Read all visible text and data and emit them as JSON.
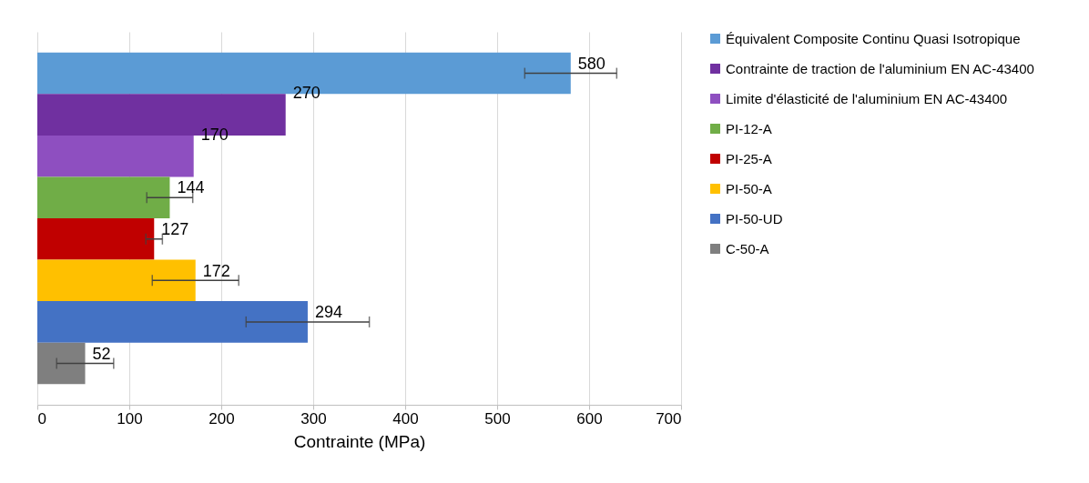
{
  "chart_data": {
    "type": "bar",
    "orientation": "horizontal",
    "xlabel": "Contrainte (MPa)",
    "categories": [
      null,
      null,
      null,
      null,
      null,
      null,
      null,
      null
    ],
    "series": [
      {
        "name": "Équivalent Composite Continu Quasi Isotropique",
        "color": "#5b9bd5",
        "values": [
          580,
          null,
          null,
          null,
          null,
          null,
          null,
          null
        ],
        "errors": [
          50,
          null,
          null,
          null,
          null,
          null,
          null,
          null
        ]
      },
      {
        "name": "Contrainte de traction de l'aluminium EN AC-43400",
        "color": "#7030a0",
        "values": [
          null,
          270,
          null,
          null,
          null,
          null,
          null,
          null
        ]
      },
      {
        "name": "Limite d'élasticité de l'aluminium EN AC-43400",
        "color": "#8e4fc0",
        "values": [
          null,
          null,
          170,
          null,
          null,
          null,
          null,
          null
        ]
      },
      {
        "name": "PI-12-A",
        "color": "#70ad47",
        "values": [
          null,
          null,
          null,
          144,
          null,
          null,
          null,
          null
        ],
        "errors": [
          null,
          null,
          null,
          25,
          null,
          null,
          null,
          null
        ]
      },
      {
        "name": "PI-25-A",
        "color": "#c00000",
        "values": [
          null,
          null,
          null,
          null,
          127,
          null,
          null,
          null
        ],
        "errors": [
          null,
          null,
          null,
          null,
          9,
          null,
          null,
          null
        ]
      },
      {
        "name": "PI-50-A",
        "color": "#ffc000",
        "values": [
          null,
          null,
          null,
          null,
          null,
          172,
          null,
          null
        ],
        "errors": [
          null,
          null,
          null,
          null,
          null,
          47,
          null,
          null
        ]
      },
      {
        "name": "PI-50-UD",
        "color": "#4472c4",
        "values": [
          null,
          null,
          null,
          null,
          null,
          null,
          294,
          null
        ],
        "errors": [
          null,
          null,
          null,
          null,
          null,
          null,
          67,
          null
        ]
      },
      {
        "name": "C-50-A",
        "color": "#7f7f7f",
        "values": [
          null,
          null,
          null,
          null,
          null,
          null,
          null,
          52
        ],
        "errors": [
          null,
          null,
          null,
          null,
          null,
          null,
          null,
          31
        ]
      }
    ],
    "xlim": [
      0,
      700
    ],
    "xticks": [
      0,
      100,
      200,
      300,
      400,
      500,
      600,
      700
    ],
    "grid": "x",
    "legend": "right",
    "data_labels": true,
    "tick_labels": "x"
  }
}
